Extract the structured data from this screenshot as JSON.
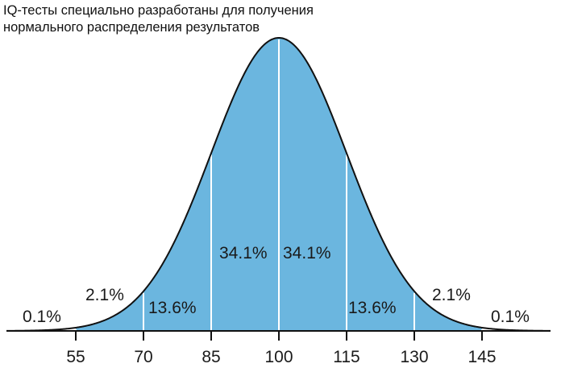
{
  "title": {
    "line1": "IQ-тесты специально разработаны для получения",
    "line2": "нормального распределения результатов"
  },
  "colors": {
    "fill": "#6bb6df",
    "curve": "#111111",
    "divider": "#ffffff",
    "axis": "#111111"
  },
  "chart_data": {
    "type": "area",
    "title": "IQ-тесты специально разработаны для получения нормального распределения результатов",
    "xlabel": "",
    "ylabel": "",
    "distribution": "normal",
    "mean": 100,
    "std": 15,
    "x_ticks": [
      55,
      70,
      85,
      100,
      115,
      130,
      145
    ],
    "segments": [
      {
        "range": "<55",
        "percent": "0.1%"
      },
      {
        "range": "55-70",
        "percent": "2.1%"
      },
      {
        "range": "70-85",
        "percent": "13.6%"
      },
      {
        "range": "85-100",
        "percent": "34.1%"
      },
      {
        "range": "100-115",
        "percent": "34.1%"
      },
      {
        "range": "115-130",
        "percent": "13.6%"
      },
      {
        "range": "130-145",
        "percent": "2.1%"
      },
      {
        "range": ">145",
        "percent": "0.1%"
      }
    ],
    "grid": false,
    "legend": null
  },
  "labels": {
    "p_far_left": "0.1%",
    "p_left_2": "2.1%",
    "p_left_13": "13.6%",
    "p_left_34": "34.1%",
    "p_right_34": "34.1%",
    "p_right_13": "13.6%",
    "p_right_2": "2.1%",
    "p_far_right": "0.1%"
  },
  "ticks": [
    "55",
    "70",
    "85",
    "100",
    "115",
    "130",
    "145"
  ]
}
